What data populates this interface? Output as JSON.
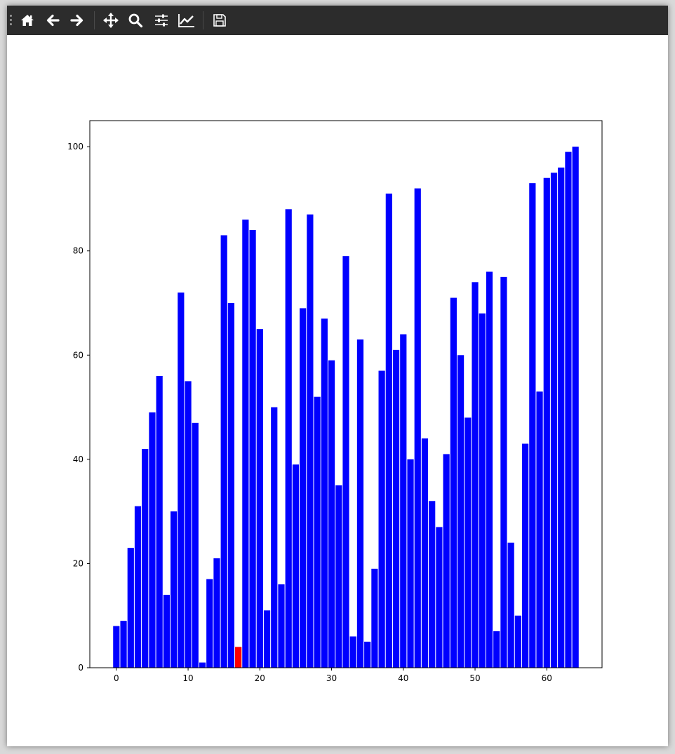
{
  "toolbar": {
    "buttons": [
      {
        "name": "home-button",
        "icon": "home-icon"
      },
      {
        "name": "back-button",
        "icon": "arrow-left-icon"
      },
      {
        "name": "forward-button",
        "icon": "arrow-right-icon"
      },
      {
        "name": "pan-button",
        "icon": "move-icon"
      },
      {
        "name": "zoom-button",
        "icon": "magnifier-icon"
      },
      {
        "name": "subplots-button",
        "icon": "sliders-icon"
      },
      {
        "name": "customize-button",
        "icon": "line-chart-icon"
      },
      {
        "name": "save-button",
        "icon": "floppy-disk-icon"
      }
    ]
  },
  "chart_data": {
    "type": "bar",
    "x": [
      0,
      1,
      2,
      3,
      4,
      5,
      6,
      7,
      8,
      9,
      10,
      11,
      12,
      13,
      14,
      15,
      16,
      17,
      18,
      19,
      20,
      21,
      22,
      23,
      24,
      25,
      26,
      27,
      28,
      29,
      30,
      31,
      32,
      33,
      34,
      35,
      36,
      37,
      38,
      39,
      40,
      41,
      42,
      43,
      44,
      45,
      46,
      47,
      48,
      49,
      50,
      51,
      52,
      53,
      54,
      55,
      56,
      57,
      58,
      59,
      60,
      61,
      62,
      63,
      64
    ],
    "values": [
      8,
      9,
      23,
      31,
      42,
      49,
      56,
      14,
      30,
      72,
      55,
      47,
      1,
      17,
      21,
      83,
      70,
      4,
      86,
      84,
      65,
      11,
      50,
      16,
      88,
      39,
      69,
      87,
      52,
      67,
      59,
      35,
      79,
      6,
      63,
      5,
      19,
      57,
      91,
      61,
      64,
      40,
      92,
      44,
      32,
      27,
      41,
      71,
      60,
      48,
      74,
      68,
      76,
      7,
      75,
      24,
      10,
      43,
      93,
      53,
      94,
      95,
      96,
      99,
      100
    ],
    "highlight_index": 17,
    "colors": {
      "default": "#0000ff",
      "highlight": "#ff0000"
    },
    "xlim": [
      -3.7,
      67.7
    ],
    "ylim": [
      0,
      105
    ],
    "xticks": [
      0,
      10,
      20,
      30,
      40,
      50,
      60
    ],
    "yticks": [
      0,
      20,
      40,
      60,
      80,
      100
    ],
    "xtick_labels": [
      "0",
      "10",
      "20",
      "30",
      "40",
      "50",
      "60"
    ],
    "ytick_labels": [
      "0",
      "20",
      "40",
      "60",
      "80",
      "100"
    ],
    "bar_width": 0.9,
    "grid": false,
    "title": "",
    "xlabel": "",
    "ylabel": ""
  }
}
